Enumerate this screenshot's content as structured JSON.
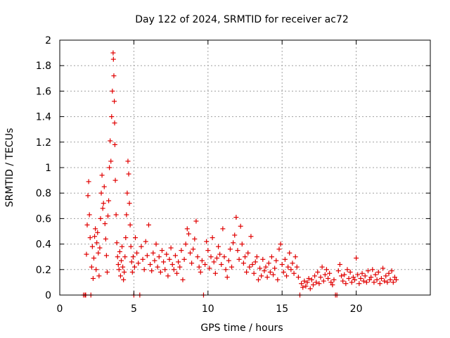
{
  "chart_data": {
    "type": "scatter",
    "title": "Day 122 of 2024, SRMTID for receiver ac72",
    "xlabel": "GPS time / hours",
    "ylabel": "SRMTID / TECUs",
    "xlim": [
      0,
      25
    ],
    "ylim": [
      0,
      2
    ],
    "xticks": [
      "0",
      "5",
      "10",
      "15",
      "20"
    ],
    "yticks": [
      "0",
      "0.2",
      "0.4",
      "0.6",
      "0.8",
      "1",
      "1.2",
      "1.4",
      "1.6",
      "1.8",
      "2"
    ],
    "grid": true,
    "marker": "+",
    "color": "#e00000",
    "peak": {
      "x": 3.6,
      "y": 1.9
    },
    "series": [
      {
        "name": "SRMTID",
        "points": [
          [
            1.6,
            0.0
          ],
          [
            1.7,
            0.0
          ],
          [
            1.75,
            0.0
          ],
          [
            1.8,
            0.32
          ],
          [
            1.85,
            0.55
          ],
          [
            1.9,
            0.78
          ],
          [
            1.95,
            0.89
          ],
          [
            2.0,
            0.63
          ],
          [
            2.05,
            0.45
          ],
          [
            2.1,
            0.0
          ],
          [
            2.15,
            0.22
          ],
          [
            2.2,
            0.38
          ],
          [
            2.25,
            0.13
          ],
          [
            2.3,
            0.29
          ],
          [
            2.35,
            0.46
          ],
          [
            2.4,
            0.52
          ],
          [
            2.45,
            0.2
          ],
          [
            2.5,
            0.41
          ],
          [
            2.55,
            0.49
          ],
          [
            2.6,
            0.33
          ],
          [
            2.65,
            0.15
          ],
          [
            2.7,
            0.37
          ],
          [
            2.75,
            0.6
          ],
          [
            2.8,
            0.8
          ],
          [
            2.85,
            0.94
          ],
          [
            2.9,
            0.68
          ],
          [
            2.95,
            0.72
          ],
          [
            3.0,
            0.85
          ],
          [
            3.05,
            0.56
          ],
          [
            3.1,
            0.44
          ],
          [
            3.15,
            0.31
          ],
          [
            3.2,
            0.18
          ],
          [
            3.25,
            0.62
          ],
          [
            3.3,
            0.74
          ],
          [
            3.35,
            1.0
          ],
          [
            3.4,
            1.21
          ],
          [
            3.45,
            1.05
          ],
          [
            3.5,
            1.4
          ],
          [
            3.55,
            1.6
          ],
          [
            3.6,
            1.9
          ],
          [
            3.62,
            1.85
          ],
          [
            3.65,
            1.72
          ],
          [
            3.68,
            1.52
          ],
          [
            3.7,
            1.35
          ],
          [
            3.72,
            1.18
          ],
          [
            3.75,
            0.9
          ],
          [
            3.8,
            0.63
          ],
          [
            3.85,
            0.41
          ],
          [
            3.9,
            0.3
          ],
          [
            3.95,
            0.24
          ],
          [
            4.0,
            0.2
          ],
          [
            4.05,
            0.34
          ],
          [
            4.1,
            0.15
          ],
          [
            4.15,
            0.27
          ],
          [
            4.2,
            0.38
          ],
          [
            4.25,
            0.22
          ],
          [
            4.3,
            0.12
          ],
          [
            4.35,
            0.18
          ],
          [
            4.4,
            0.3
          ],
          [
            4.45,
            0.45
          ],
          [
            4.5,
            0.63
          ],
          [
            4.55,
            0.8
          ],
          [
            4.6,
            1.05
          ],
          [
            4.65,
            0.95
          ],
          [
            4.7,
            0.72
          ],
          [
            4.75,
            0.55
          ],
          [
            4.8,
            0.38
          ],
          [
            4.85,
            0.26
          ],
          [
            4.9,
            0.18
          ],
          [
            4.95,
            0.3
          ],
          [
            5.0,
            0.0
          ],
          [
            5.05,
            0.22
          ],
          [
            5.1,
            0.45
          ],
          [
            5.2,
            0.33
          ],
          [
            5.3,
            0.25
          ],
          [
            5.4,
            0.0
          ],
          [
            5.5,
            0.38
          ],
          [
            5.6,
            0.28
          ],
          [
            5.7,
            0.2
          ],
          [
            5.8,
            0.42
          ],
          [
            5.9,
            0.31
          ],
          [
            6.0,
            0.55
          ],
          [
            6.1,
            0.24
          ],
          [
            6.2,
            0.19
          ],
          [
            6.3,
            0.33
          ],
          [
            6.4,
            0.27
          ],
          [
            6.5,
            0.4
          ],
          [
            6.6,
            0.22
          ],
          [
            6.7,
            0.3
          ],
          [
            6.8,
            0.18
          ],
          [
            6.9,
            0.35
          ],
          [
            7.0,
            0.26
          ],
          [
            7.1,
            0.2
          ],
          [
            7.2,
            0.32
          ],
          [
            7.3,
            0.15
          ],
          [
            7.4,
            0.28
          ],
          [
            7.5,
            0.37
          ],
          [
            7.6,
            0.24
          ],
          [
            7.7,
            0.2
          ],
          [
            7.8,
            0.31
          ],
          [
            7.9,
            0.17
          ],
          [
            8.0,
            0.26
          ],
          [
            8.1,
            0.22
          ],
          [
            8.2,
            0.35
          ],
          [
            8.3,
            0.12
          ],
          [
            8.4,
            0.28
          ],
          [
            8.5,
            0.4
          ],
          [
            8.6,
            0.52
          ],
          [
            8.7,
            0.48
          ],
          [
            8.8,
            0.33
          ],
          [
            8.9,
            0.25
          ],
          [
            9.0,
            0.36
          ],
          [
            9.1,
            0.44
          ],
          [
            9.2,
            0.58
          ],
          [
            9.3,
            0.3
          ],
          [
            9.4,
            0.22
          ],
          [
            9.5,
            0.18
          ],
          [
            9.6,
            0.27
          ],
          [
            9.7,
            0.0
          ],
          [
            9.8,
            0.24
          ],
          [
            9.9,
            0.42
          ],
          [
            10.0,
            0.35
          ],
          [
            10.1,
            0.21
          ],
          [
            10.2,
            0.3
          ],
          [
            10.3,
            0.45
          ],
          [
            10.4,
            0.26
          ],
          [
            10.5,
            0.17
          ],
          [
            10.6,
            0.29
          ],
          [
            10.7,
            0.38
          ],
          [
            10.8,
            0.32
          ],
          [
            10.9,
            0.24
          ],
          [
            11.0,
            0.52
          ],
          [
            11.1,
            0.3
          ],
          [
            11.2,
            0.2
          ],
          [
            11.3,
            0.14
          ],
          [
            11.4,
            0.27
          ],
          [
            11.5,
            0.36
          ],
          [
            11.6,
            0.22
          ],
          [
            11.7,
            0.41
          ],
          [
            11.8,
            0.47
          ],
          [
            11.9,
            0.61
          ],
          [
            12.0,
            0.35
          ],
          [
            12.1,
            0.28
          ],
          [
            12.2,
            0.54
          ],
          [
            12.3,
            0.4
          ],
          [
            12.4,
            0.25
          ],
          [
            12.5,
            0.3
          ],
          [
            12.6,
            0.18
          ],
          [
            12.7,
            0.33
          ],
          [
            12.8,
            0.22
          ],
          [
            12.9,
            0.46
          ],
          [
            13.0,
            0.24
          ],
          [
            13.1,
            0.17
          ],
          [
            13.2,
            0.26
          ],
          [
            13.3,
            0.3
          ],
          [
            13.4,
            0.12
          ],
          [
            13.5,
            0.21
          ],
          [
            13.6,
            0.15
          ],
          [
            13.7,
            0.28
          ],
          [
            13.8,
            0.19
          ],
          [
            13.9,
            0.22
          ],
          [
            14.0,
            0.14
          ],
          [
            14.1,
            0.25
          ],
          [
            14.2,
            0.18
          ],
          [
            14.3,
            0.3
          ],
          [
            14.4,
            0.16
          ],
          [
            14.5,
            0.21
          ],
          [
            14.6,
            0.27
          ],
          [
            14.7,
            0.12
          ],
          [
            14.8,
            0.36
          ],
          [
            14.9,
            0.4
          ],
          [
            15.0,
            0.24
          ],
          [
            15.1,
            0.18
          ],
          [
            15.2,
            0.28
          ],
          [
            15.3,
            0.15
          ],
          [
            15.4,
            0.22
          ],
          [
            15.5,
            0.33
          ],
          [
            15.6,
            0.2
          ],
          [
            15.7,
            0.25
          ],
          [
            15.8,
            0.17
          ],
          [
            15.9,
            0.3
          ],
          [
            16.0,
            0.22
          ],
          [
            16.1,
            0.14
          ],
          [
            16.2,
            0.0
          ],
          [
            16.3,
            0.09
          ],
          [
            16.4,
            0.06
          ],
          [
            16.5,
            0.11
          ],
          [
            16.6,
            0.07
          ],
          [
            16.7,
            0.1
          ],
          [
            16.8,
            0.13
          ],
          [
            16.9,
            0.05
          ],
          [
            17.0,
            0.12
          ],
          [
            17.1,
            0.08
          ],
          [
            17.2,
            0.15
          ],
          [
            17.3,
            0.1
          ],
          [
            17.4,
            0.18
          ],
          [
            17.5,
            0.09
          ],
          [
            17.6,
            0.14
          ],
          [
            17.7,
            0.22
          ],
          [
            17.8,
            0.11
          ],
          [
            17.9,
            0.16
          ],
          [
            18.0,
            0.2
          ],
          [
            18.1,
            0.13
          ],
          [
            18.2,
            0.17
          ],
          [
            18.3,
            0.1
          ],
          [
            18.4,
            0.08
          ],
          [
            18.5,
            0.12
          ],
          [
            18.6,
            0.0
          ],
          [
            18.7,
            0.0
          ],
          [
            18.8,
            0.19
          ],
          [
            18.9,
            0.24
          ],
          [
            19.0,
            0.15
          ],
          [
            19.1,
            0.11
          ],
          [
            19.2,
            0.16
          ],
          [
            19.3,
            0.09
          ],
          [
            19.4,
            0.2
          ],
          [
            19.5,
            0.13
          ],
          [
            19.6,
            0.18
          ],
          [
            19.7,
            0.1
          ],
          [
            19.8,
            0.14
          ],
          [
            19.9,
            0.12
          ],
          [
            20.0,
            0.29
          ],
          [
            20.1,
            0.16
          ],
          [
            20.2,
            0.09
          ],
          [
            20.3,
            0.13
          ],
          [
            20.4,
            0.17
          ],
          [
            20.5,
            0.11
          ],
          [
            20.6,
            0.15
          ],
          [
            20.7,
            0.1
          ],
          [
            20.8,
            0.19
          ],
          [
            20.9,
            0.12
          ],
          [
            21.0,
            0.14
          ],
          [
            21.1,
            0.2
          ],
          [
            21.2,
            0.1
          ],
          [
            21.3,
            0.16
          ],
          [
            21.4,
            0.12
          ],
          [
            21.5,
            0.18
          ],
          [
            21.6,
            0.09
          ],
          [
            21.7,
            0.13
          ],
          [
            21.8,
            0.21
          ],
          [
            21.9,
            0.11
          ],
          [
            22.0,
            0.15
          ],
          [
            22.1,
            0.1
          ],
          [
            22.2,
            0.17
          ],
          [
            22.3,
            0.12
          ],
          [
            22.4,
            0.19
          ],
          [
            22.5,
            0.1
          ],
          [
            22.6,
            0.14
          ],
          [
            22.7,
            0.12
          ]
        ]
      }
    ]
  }
}
